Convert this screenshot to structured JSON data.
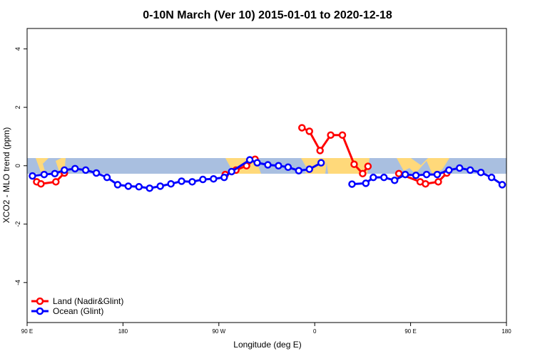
{
  "chart_data": {
    "type": "line",
    "title": "0-10N March (Ver 10)   2015-01-01 to 2020-12-18",
    "x_label": "Longitude (deg E)",
    "y_label": "XCO2 - MLO trend (ppm)",
    "xlim": [
      90,
      540
    ],
    "ylim": [
      -5.37,
      4.7
    ],
    "xticks": [
      {
        "value": 90,
        "label": "90 E"
      },
      180,
      {
        "value": 270,
        "label": "90 W"
      },
      {
        "value": 360,
        "label": "0"
      },
      {
        "value": 450,
        "label": "90 E"
      },
      {
        "value": 540,
        "label": "180"
      }
    ],
    "yticks": [
      -4,
      -2,
      0,
      2,
      4
    ],
    "legend": "bottom-left",
    "series": [
      {
        "name": "Land (Nadir&Glint)",
        "color": "#ff0000",
        "x": [
          99,
          103,
          117,
          125,
          200,
          276,
          286,
          296,
          304,
          330,
          348,
          355,
          365,
          375,
          386,
          397,
          405,
          410,
          425,
          439,
          459,
          464,
          476,
          484
        ],
        "values": [
          -0.55,
          -0.62,
          -0.55,
          -0.25,
          null,
          -0.3,
          -0.15,
          0.0,
          0.22,
          null,
          1.3,
          1.18,
          0.52,
          1.05,
          1.05,
          0.05,
          -0.27,
          -0.02,
          null,
          -0.27,
          -0.55,
          -0.62,
          -0.55,
          -0.25
        ]
      },
      {
        "name": "Ocean (Glint)",
        "color": "#0000ff",
        "x": [
          95,
          106,
          116,
          125,
          135,
          145,
          155,
          165,
          175,
          185,
          195,
          205,
          215,
          225,
          235,
          245,
          255,
          265,
          275,
          282,
          299,
          306,
          316,
          326,
          335,
          345,
          355,
          366,
          375,
          395,
          408,
          415,
          425,
          435,
          445,
          455,
          465,
          475,
          486,
          496,
          506,
          516,
          526,
          536
        ],
        "values": [
          -0.35,
          -0.3,
          -0.27,
          -0.15,
          -0.1,
          -0.15,
          -0.25,
          -0.4,
          -0.65,
          -0.7,
          -0.72,
          -0.77,
          -0.7,
          -0.62,
          -0.53,
          -0.55,
          -0.47,
          -0.45,
          -0.4,
          -0.2,
          0.2,
          0.1,
          0.03,
          0.0,
          -0.05,
          -0.17,
          -0.12,
          0.1,
          null,
          -0.63,
          -0.6,
          -0.4,
          -0.4,
          -0.5,
          -0.3,
          -0.33,
          -0.3,
          -0.3,
          -0.15,
          -0.08,
          -0.15,
          -0.23,
          -0.4,
          -0.65
        ]
      }
    ]
  }
}
